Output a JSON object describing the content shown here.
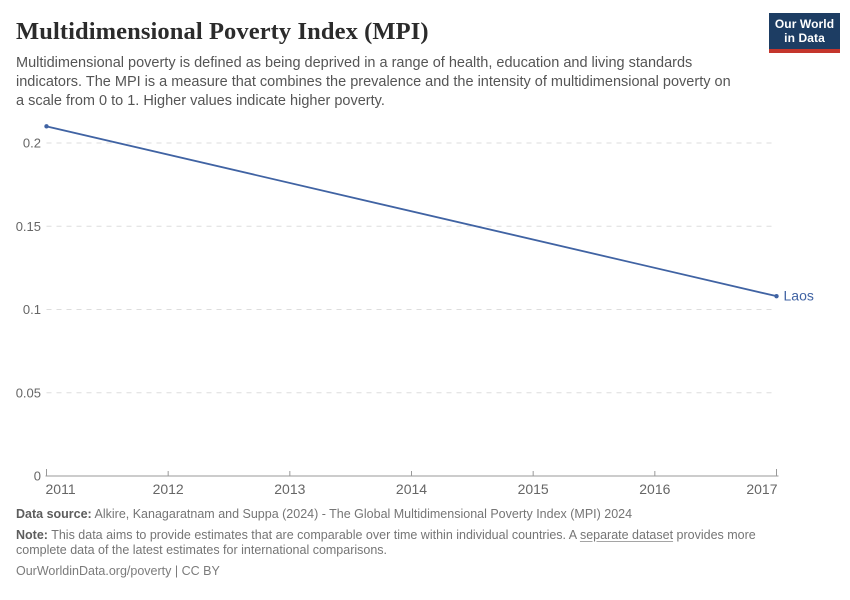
{
  "header": {
    "title": "Multidimensional Poverty Index (MPI)",
    "subtitle": "Multidimensional poverty is defined as being deprived in a range of health, education and living standards indicators. The MPI is a measure that combines the prevalence and the intensity of multidimensional poverty on a scale from 0 to 1. Higher values indicate higher poverty.",
    "logo": {
      "line1": "Our World",
      "line2": "in Data",
      "bg_color": "#1d3d63",
      "accent_color": "#c4352c"
    }
  },
  "chart_data": {
    "type": "line",
    "title": "Multidimensional Poverty Index (MPI)",
    "x": [
      2011,
      2017
    ],
    "series": [
      {
        "name": "Laos",
        "color": "#4063a3",
        "values": [
          0.21,
          0.108
        ]
      }
    ],
    "x_ticks": [
      "2011",
      "2012",
      "2013",
      "2014",
      "2015",
      "2016",
      "2017"
    ],
    "y_ticks": [
      {
        "value": 0,
        "label": "0"
      },
      {
        "value": 0.05,
        "label": "0.05"
      },
      {
        "value": 0.1,
        "label": "0.1"
      },
      {
        "value": 0.15,
        "label": "0.15"
      },
      {
        "value": 0.2,
        "label": "0.2"
      }
    ],
    "xlim": [
      2011,
      2017
    ],
    "ylim": [
      0,
      0.217
    ],
    "grid": "horizontal-dashed",
    "grid_color": "#dddddd",
    "axis_color": "#999999",
    "tick_label_color": "#666666",
    "legend_position": "end-of-line-label"
  },
  "footer": {
    "data_source_label": "Data source:",
    "data_source_text": " Alkire, Kanagaratnam and Suppa (2024) - The Global Multidimensional Poverty Index (MPI) 2024",
    "note_label": "Note:",
    "note_text_before_link": " This data aims to provide estimates that are comparable over time within individual countries. A ",
    "note_link": "separate dataset",
    "note_text_after_link": " provides more complete data of the latest estimates for international comparisons.",
    "license": "OurWorldinData.org/poverty | CC BY"
  }
}
